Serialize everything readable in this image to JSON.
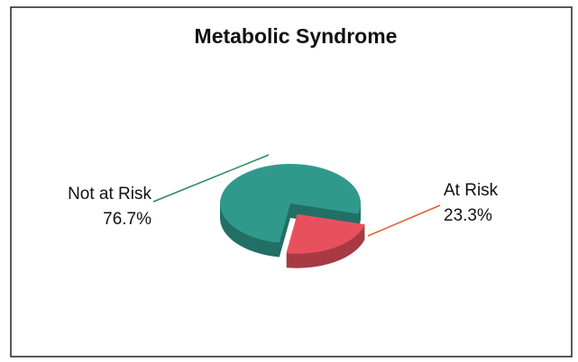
{
  "chart_data": {
    "type": "pie",
    "title": "Metabolic Syndrome",
    "categories": [
      "Not at Risk",
      "At Risk"
    ],
    "values": [
      76.7,
      23.3
    ],
    "value_labels": [
      "76.7%",
      "23.3%"
    ],
    "colors": [
      "#2f9a8c",
      "#e9505e"
    ]
  }
}
